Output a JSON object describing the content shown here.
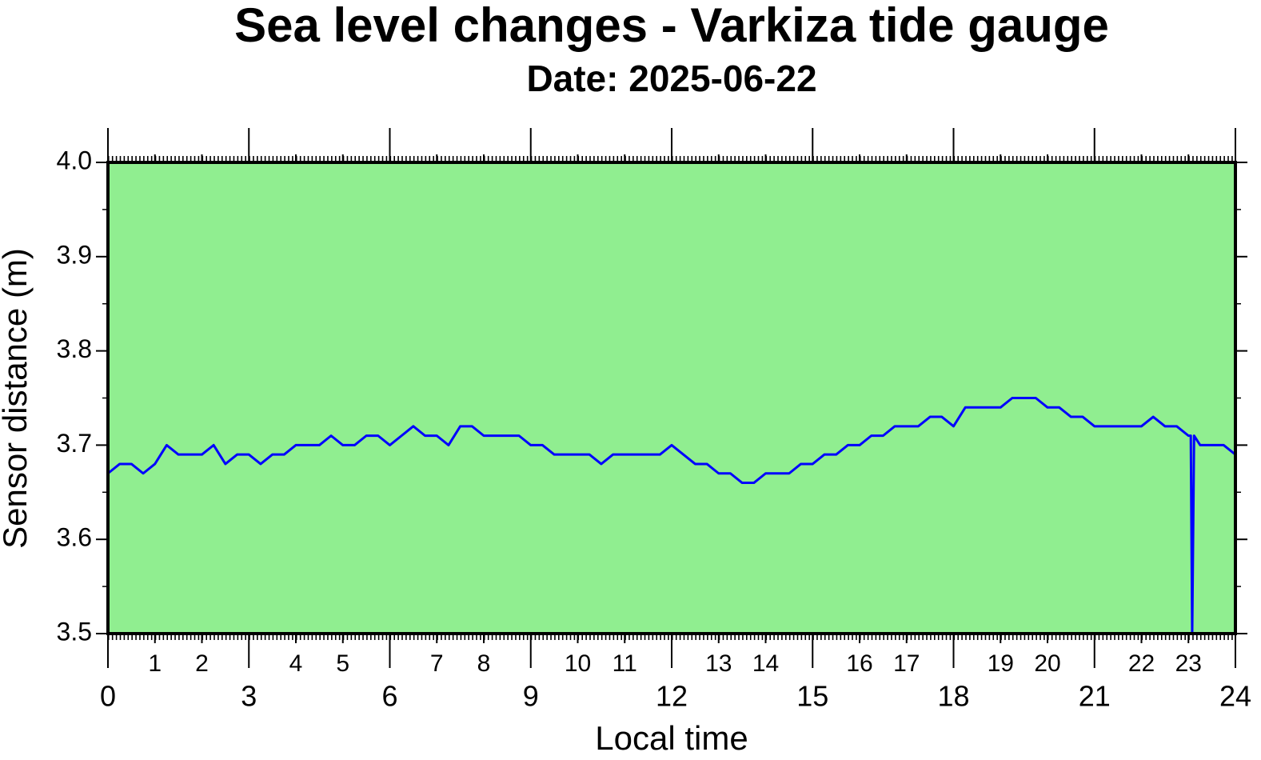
{
  "chart_data": {
    "type": "line",
    "title": "Sea level changes - Varkiza tide gauge",
    "subtitle": "Date: 2025-06-22",
    "x_label": "Local time",
    "y_label": "Sensor distance (m)",
    "background": "#90ee90",
    "x": [
      0,
      0.25,
      0.5,
      0.75,
      1,
      1.25,
      1.5,
      1.75,
      2,
      2.25,
      2.5,
      2.75,
      3,
      3.25,
      3.5,
      3.75,
      4,
      4.25,
      4.5,
      4.75,
      5,
      5.25,
      5.5,
      5.75,
      6,
      6.25,
      6.5,
      6.75,
      7,
      7.25,
      7.5,
      7.75,
      8,
      8.25,
      8.5,
      8.75,
      9,
      9.25,
      9.5,
      9.75,
      10,
      10.25,
      10.5,
      10.75,
      11,
      11.25,
      11.5,
      11.75,
      12,
      12.25,
      12.5,
      12.75,
      13,
      13.25,
      13.5,
      13.75,
      14,
      14.25,
      14.5,
      14.75,
      15,
      15.25,
      15.5,
      15.75,
      16,
      16.25,
      16.5,
      16.75,
      17,
      17.25,
      17.5,
      17.75,
      18,
      18.25,
      18.5,
      18.75,
      19,
      19.25,
      19.5,
      19.75,
      20,
      20.25,
      20.5,
      20.75,
      21,
      21.25,
      21.5,
      21.75,
      22,
      22.25,
      22.5,
      22.75,
      23,
      23.05,
      23.08,
      23.12,
      23.25,
      23.5,
      23.75,
      24
    ],
    "series": [
      {
        "name": "Sensor distance",
        "color": "#0000ff",
        "values": [
          3.67,
          3.68,
          3.68,
          3.67,
          3.68,
          3.7,
          3.69,
          3.69,
          3.69,
          3.7,
          3.68,
          3.69,
          3.69,
          3.68,
          3.69,
          3.69,
          3.7,
          3.7,
          3.7,
          3.71,
          3.7,
          3.7,
          3.71,
          3.71,
          3.7,
          3.71,
          3.72,
          3.71,
          3.71,
          3.7,
          3.72,
          3.72,
          3.71,
          3.71,
          3.71,
          3.71,
          3.7,
          3.7,
          3.69,
          3.69,
          3.69,
          3.69,
          3.68,
          3.69,
          3.69,
          3.69,
          3.69,
          3.69,
          3.7,
          3.69,
          3.68,
          3.68,
          3.67,
          3.67,
          3.66,
          3.66,
          3.67,
          3.67,
          3.67,
          3.68,
          3.68,
          3.69,
          3.69,
          3.7,
          3.7,
          3.71,
          3.71,
          3.72,
          3.72,
          3.72,
          3.73,
          3.73,
          3.72,
          3.74,
          3.74,
          3.74,
          3.74,
          3.75,
          3.75,
          3.75,
          3.74,
          3.74,
          3.73,
          3.73,
          3.72,
          3.72,
          3.72,
          3.72,
          3.72,
          3.73,
          3.72,
          3.72,
          3.71,
          3.71,
          3.5,
          3.71,
          3.7,
          3.7,
          3.7,
          3.69
        ]
      }
    ],
    "xlim": [
      0,
      24
    ],
    "xticks": [
      0,
      1,
      2,
      3,
      4,
      5,
      6,
      7,
      8,
      9,
      10,
      11,
      12,
      13,
      14,
      15,
      16,
      17,
      18,
      19,
      20,
      21,
      22,
      23,
      24
    ],
    "ylim": [
      3.5,
      4.0
    ],
    "yticks": [
      {
        "value": 3.5,
        "label": "3.5"
      },
      {
        "value": 3.6,
        "label": "3.6"
      },
      {
        "value": 3.7,
        "label": "3.7"
      },
      {
        "value": 3.8,
        "label": "3.8"
      },
      {
        "value": 3.9,
        "label": "3.9"
      },
      {
        "value": 4.0,
        "label": "4.0"
      }
    ]
  }
}
